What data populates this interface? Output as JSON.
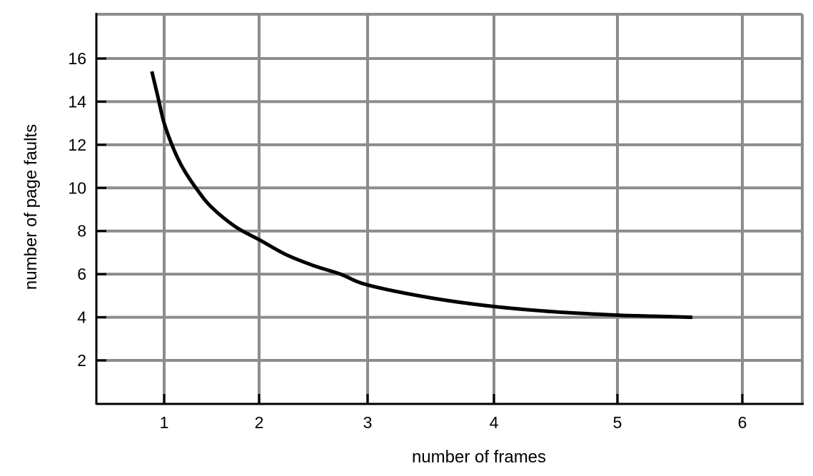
{
  "chart_data": {
    "type": "line",
    "title": "",
    "xlabel": "number of frames",
    "ylabel": "number of page faults",
    "x_ticks": [
      1,
      2,
      3,
      4,
      5,
      6
    ],
    "y_ticks": [
      2,
      4,
      6,
      8,
      10,
      12,
      14,
      16
    ],
    "grid": true,
    "series": [
      {
        "name": "page faults",
        "x": [
          0.87,
          0.93,
          1.0,
          1.1,
          1.2,
          1.35,
          1.5,
          1.75,
          2.0,
          2.25,
          2.5,
          2.75,
          3.0,
          3.5,
          4.0,
          4.5,
          5.0,
          5.3,
          5.6
        ],
        "y": [
          15.4,
          14.3,
          13.0,
          11.8,
          10.9,
          9.9,
          9.1,
          8.2,
          7.6,
          6.9,
          6.4,
          6.0,
          5.5,
          4.9,
          4.5,
          4.25,
          4.1,
          4.05,
          4.0
        ]
      }
    ],
    "colors": {
      "grid": "#8c8c8c",
      "axis": "#000000",
      "line": "#000000"
    }
  }
}
